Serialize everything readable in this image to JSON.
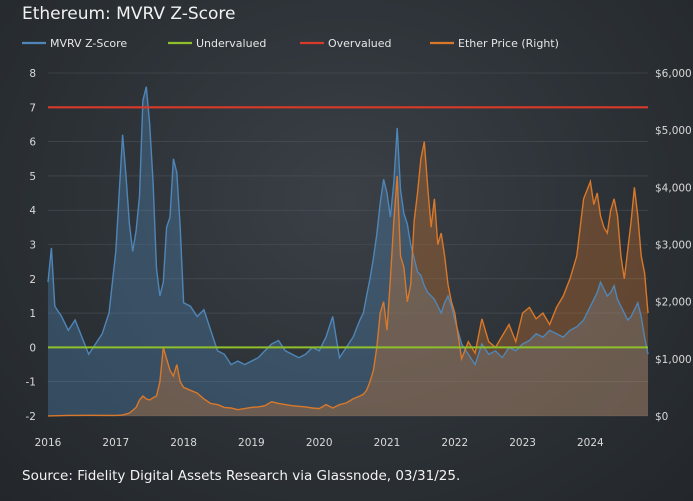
{
  "title": "Ethereum: MVRV Z-Score",
  "source": "Source: Fidelity Digital Assets Research via Glassnode, 03/31/25.",
  "colors": {
    "mvrv": "#4f86b8",
    "undervalued": "#8fbf2a",
    "overvalued": "#d83a2a",
    "price": "#d9782a"
  },
  "chart_data": {
    "type": "line",
    "title": "Ethereum: MVRV Z-Score",
    "legend": [
      "MVRV Z-Score",
      "Undervalued",
      "Overvalued",
      "Ether Price (Right)"
    ],
    "legend_position": "top",
    "x_ticks": [
      "2016",
      "2017",
      "2018",
      "2019",
      "2020",
      "2021",
      "2022",
      "2023",
      "2024"
    ],
    "y_left_ticks": [
      "8",
      "7",
      "6",
      "5",
      "4",
      "3",
      "2",
      "1",
      "0",
      "-1",
      "-2"
    ],
    "y_left_range": [
      -2,
      8
    ],
    "y_right_ticks": [
      "$6,000",
      "$5,000",
      "$4,000",
      "$3,000",
      "$2,000",
      "$1,000",
      "$0"
    ],
    "y_right_range": [
      0,
      6000
    ],
    "x_range": [
      2016.0,
      2024.85
    ],
    "undervalued_level": 0,
    "overvalued_level": 7,
    "series": [
      {
        "name": "MVRV Z-Score",
        "axis": "left",
        "x": [
          2016.0,
          2016.05,
          2016.1,
          2016.2,
          2016.3,
          2016.4,
          2016.5,
          2016.6,
          2016.7,
          2016.8,
          2016.9,
          2017.0,
          2017.05,
          2017.1,
          2017.15,
          2017.2,
          2017.25,
          2017.3,
          2017.35,
          2017.4,
          2017.45,
          2017.5,
          2017.55,
          2017.6,
          2017.65,
          2017.7,
          2017.75,
          2017.8,
          2017.85,
          2017.9,
          2017.95,
          2018.0,
          2018.1,
          2018.2,
          2018.3,
          2018.4,
          2018.5,
          2018.6,
          2018.7,
          2018.8,
          2018.9,
          2019.0,
          2019.1,
          2019.2,
          2019.3,
          2019.4,
          2019.5,
          2019.6,
          2019.7,
          2019.8,
          2019.9,
          2020.0,
          2020.1,
          2020.2,
          2020.3,
          2020.4,
          2020.5,
          2020.6,
          2020.65,
          2020.7,
          2020.75,
          2020.8,
          2020.85,
          2020.9,
          2020.95,
          2021.0,
          2021.05,
          2021.1,
          2021.15,
          2021.2,
          2021.25,
          2021.3,
          2021.35,
          2021.4,
          2021.45,
          2021.5,
          2021.55,
          2021.6,
          2021.65,
          2021.7,
          2021.75,
          2021.8,
          2021.85,
          2021.9,
          2021.95,
          2022.0,
          2022.1,
          2022.2,
          2022.3,
          2022.4,
          2022.5,
          2022.6,
          2022.7,
          2022.8,
          2022.9,
          2023.0,
          2023.1,
          2023.2,
          2023.3,
          2023.4,
          2023.5,
          2023.6,
          2023.7,
          2023.8,
          2023.9,
          2024.0,
          2024.05,
          2024.1,
          2024.15,
          2024.2,
          2024.25,
          2024.3,
          2024.35,
          2024.4,
          2024.45,
          2024.5,
          2024.55,
          2024.6,
          2024.65,
          2024.7,
          2024.75,
          2024.8,
          2024.85
        ],
        "values": [
          1.9,
          2.9,
          1.2,
          0.9,
          0.5,
          0.8,
          0.3,
          -0.2,
          0.1,
          0.4,
          1.0,
          2.8,
          4.5,
          6.2,
          5.0,
          3.6,
          2.8,
          3.4,
          4.4,
          7.2,
          7.6,
          6.5,
          4.8,
          2.3,
          1.5,
          1.9,
          3.5,
          3.8,
          5.5,
          5.1,
          3.5,
          1.3,
          1.2,
          0.9,
          1.1,
          0.5,
          -0.1,
          -0.2,
          -0.5,
          -0.4,
          -0.5,
          -0.4,
          -0.3,
          -0.1,
          0.1,
          0.2,
          -0.1,
          -0.2,
          -0.3,
          -0.2,
          0.0,
          -0.1,
          0.3,
          0.9,
          -0.3,
          0.0,
          0.3,
          0.8,
          1.0,
          1.5,
          2.0,
          2.6,
          3.3,
          4.2,
          4.9,
          4.5,
          3.8,
          4.8,
          6.4,
          4.6,
          3.9,
          3.6,
          3.0,
          2.6,
          2.2,
          2.1,
          1.8,
          1.6,
          1.5,
          1.4,
          1.2,
          1.0,
          1.3,
          1.5,
          1.2,
          0.8,
          0.1,
          -0.2,
          -0.5,
          0.1,
          -0.2,
          -0.1,
          -0.3,
          0.0,
          -0.1,
          0.1,
          0.2,
          0.4,
          0.3,
          0.5,
          0.4,
          0.3,
          0.5,
          0.6,
          0.8,
          1.2,
          1.4,
          1.6,
          1.9,
          1.7,
          1.5,
          1.6,
          1.8,
          1.4,
          1.2,
          1.0,
          0.8,
          0.9,
          1.1,
          1.3,
          0.9,
          0.3,
          -0.2
        ]
      },
      {
        "name": "Ether Price (Right)",
        "axis": "right",
        "x": [
          2016.0,
          2016.3,
          2016.6,
          2016.9,
          2017.0,
          2017.1,
          2017.2,
          2017.3,
          2017.35,
          2017.4,
          2017.45,
          2017.5,
          2017.55,
          2017.6,
          2017.65,
          2017.7,
          2017.75,
          2017.8,
          2017.85,
          2017.9,
          2017.95,
          2018.0,
          2018.1,
          2018.2,
          2018.3,
          2018.4,
          2018.5,
          2018.6,
          2018.7,
          2018.8,
          2018.9,
          2019.0,
          2019.1,
          2019.2,
          2019.3,
          2019.4,
          2019.5,
          2019.6,
          2019.7,
          2019.8,
          2019.9,
          2020.0,
          2020.1,
          2020.2,
          2020.3,
          2020.4,
          2020.5,
          2020.6,
          2020.65,
          2020.7,
          2020.75,
          2020.8,
          2020.85,
          2020.9,
          2020.95,
          2021.0,
          2021.05,
          2021.1,
          2021.15,
          2021.2,
          2021.25,
          2021.3,
          2021.35,
          2021.4,
          2021.45,
          2021.5,
          2021.55,
          2021.6,
          2021.65,
          2021.7,
          2021.75,
          2021.8,
          2021.85,
          2021.9,
          2021.95,
          2022.0,
          2022.1,
          2022.2,
          2022.3,
          2022.4,
          2022.5,
          2022.6,
          2022.7,
          2022.8,
          2022.9,
          2023.0,
          2023.1,
          2023.2,
          2023.3,
          2023.4,
          2023.5,
          2023.6,
          2023.7,
          2023.8,
          2023.9,
          2024.0,
          2024.05,
          2024.1,
          2024.15,
          2024.2,
          2024.25,
          2024.3,
          2024.35,
          2024.4,
          2024.45,
          2024.5,
          2024.55,
          2024.6,
          2024.65,
          2024.7,
          2024.75,
          2024.8,
          2024.85
        ],
        "values": [
          2,
          10,
          12,
          10,
          10,
          15,
          50,
          150,
          280,
          350,
          300,
          280,
          320,
          350,
          600,
          1200,
          1000,
          800,
          700,
          900,
          600,
          500,
          450,
          400,
          300,
          220,
          200,
          150,
          140,
          110,
          130,
          150,
          160,
          180,
          250,
          220,
          200,
          180,
          170,
          160,
          140,
          130,
          200,
          140,
          200,
          230,
          300,
          350,
          380,
          450,
          600,
          800,
          1200,
          1800,
          2000,
          1500,
          2400,
          3400,
          4200,
          2800,
          2600,
          2000,
          2300,
          3400,
          3900,
          4500,
          4800,
          4000,
          3300,
          3800,
          3000,
          3200,
          2800,
          2300,
          2000,
          1800,
          1000,
          1300,
          1100,
          1700,
          1300,
          1200,
          1400,
          1600,
          1300,
          1800,
          1900,
          1700,
          1800,
          1600,
          1900,
          2100,
          2400,
          2800,
          3800,
          4100,
          3700,
          3900,
          3500,
          3300,
          3200,
          3600,
          3800,
          3500,
          2800,
          2400,
          2900,
          3400,
          4000,
          3500,
          2800,
          2500,
          1800
        ]
      },
      {
        "name": "Undervalued",
        "axis": "left",
        "constant": 0
      },
      {
        "name": "Overvalued",
        "axis": "left",
        "constant": 7
      }
    ]
  }
}
